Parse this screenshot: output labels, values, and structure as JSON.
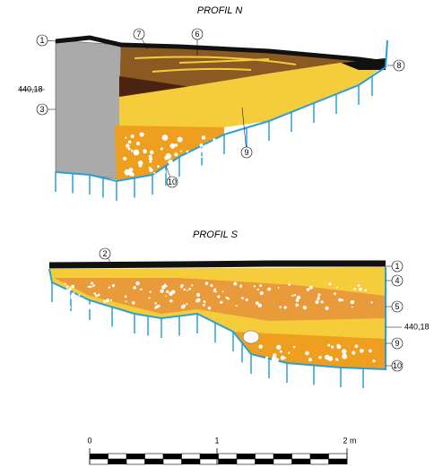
{
  "profiles": [
    {
      "title": "PROFIL N",
      "elevation": "440,18",
      "labels": [
        "1",
        "7",
        "6",
        "8",
        "3",
        "9",
        "10"
      ]
    },
    {
      "title": "PROFIL S",
      "elevation": "440,18",
      "labels": [
        "2",
        "1",
        "4",
        "5",
        "9",
        "10"
      ]
    }
  ],
  "scale": {
    "labels": [
      "0",
      "1",
      "2 m"
    ]
  }
}
